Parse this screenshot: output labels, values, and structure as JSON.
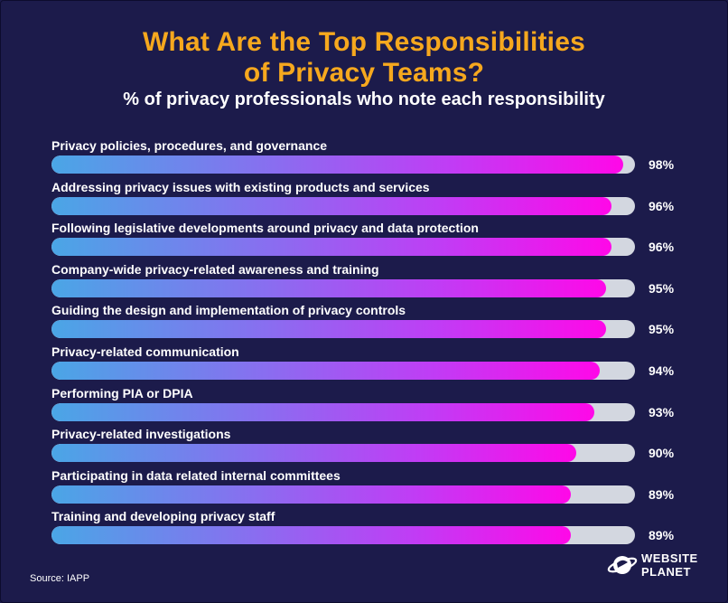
{
  "chart_data": {
    "type": "bar",
    "orientation": "horizontal",
    "title": "What Are the Top Responsibilities of Privacy Teams?",
    "subtitle": "% of privacy professionals who note each responsibility",
    "value_suffix": "%",
    "xlim": [
      0,
      100
    ],
    "grid": false,
    "categories": [
      "Privacy policies, procedures, and governance",
      "Addressing privacy issues with existing products and services",
      "Following legislative developments around privacy and data protection",
      "Company-wide privacy-related awareness and training",
      "Guiding the design and implementation of privacy controls",
      "Privacy-related communication",
      "Performing PIA or DPIA",
      "Privacy-related investigations",
      "Participating in data related internal committees",
      "Training and developing privacy staff"
    ],
    "values": [
      98,
      96,
      96,
      95,
      95,
      94,
      93,
      90,
      89,
      89
    ],
    "colors": {
      "bar_start": "#4aa6e6",
      "bar_end": "#ff08e8",
      "track": "#d3d7e0",
      "title": "#f6a81e",
      "background": "#1c1b4b"
    }
  },
  "title_lines": [
    "What Are the Top Responsibilities",
    "of Privacy Teams?"
  ],
  "footer": {
    "source": "Source: IAPP",
    "brand_line1": "WEBSITE",
    "brand_line2": "PLANET",
    "brand_icon": "planet-ring-icon"
  }
}
